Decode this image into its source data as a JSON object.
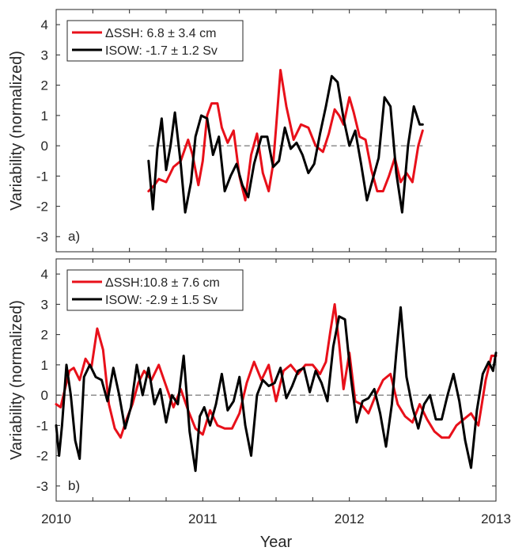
{
  "chart_data": [
    {
      "type": "line",
      "panel_label": "a)",
      "xlim": [
        2010,
        2013
      ],
      "ylim": [
        -3.5,
        4.5
      ],
      "yticks": [
        "-3",
        "-2",
        "-1",
        "0",
        "1",
        "2",
        "3",
        "4"
      ],
      "ylabel": "Variability (normalized)",
      "xlabel": "",
      "zero_line": "dashed",
      "grid": false,
      "legend_position": "top-left",
      "series": [
        {
          "name": "ΔSSH: 6.8 ± 3.4 cm",
          "color": "#e8101a",
          "x": [
            2010.63,
            2010.67,
            2010.7,
            2010.75,
            2010.8,
            2010.85,
            2010.9,
            2010.93,
            2010.97,
            2011.0,
            2011.03,
            2011.06,
            2011.1,
            2011.13,
            2011.17,
            2011.21,
            2011.25,
            2011.29,
            2011.33,
            2011.37,
            2011.41,
            2011.45,
            2011.48,
            2011.5,
            2011.53,
            2011.57,
            2011.62,
            2011.67,
            2011.72,
            2011.77,
            2011.82,
            2011.86,
            2011.9,
            2011.93,
            2011.96,
            2012.0,
            2012.03,
            2012.07,
            2012.11,
            2012.15,
            2012.19,
            2012.23,
            2012.27,
            2012.31,
            2012.35,
            2012.39,
            2012.43,
            2012.47,
            2012.5
          ],
          "y": [
            -1.5,
            -1.3,
            -1.1,
            -1.2,
            -0.7,
            -0.5,
            0.2,
            -0.3,
            -1.3,
            -0.5,
            1.0,
            1.4,
            1.4,
            0.6,
            0.1,
            0.5,
            -1.0,
            -1.8,
            -0.3,
            0.4,
            -0.9,
            -1.5,
            -0.6,
            0.6,
            2.5,
            1.3,
            0.2,
            0.7,
            0.6,
            0.0,
            -0.2,
            0.4,
            1.2,
            1.0,
            0.7,
            1.6,
            1.1,
            0.3,
            0.2,
            -0.8,
            -1.5,
            -1.5,
            -1.0,
            -0.4,
            -1.2,
            -0.9,
            -1.2,
            0.0,
            0.5
          ]
        },
        {
          "name": "ISOW: -1.7  ± 1.2 Sv",
          "color": "#000000",
          "x": [
            2010.63,
            2010.66,
            2010.69,
            2010.72,
            2010.75,
            2010.78,
            2010.81,
            2010.85,
            2010.88,
            2010.92,
            2010.95,
            2010.99,
            2011.03,
            2011.07,
            2011.11,
            2011.15,
            2011.19,
            2011.23,
            2011.27,
            2011.31,
            2011.35,
            2011.4,
            2011.44,
            2011.48,
            2011.52,
            2011.56,
            2011.6,
            2011.64,
            2011.68,
            2011.72,
            2011.76,
            2011.8,
            2011.84,
            2011.88,
            2011.92,
            2011.96,
            2012.0,
            2012.04,
            2012.08,
            2012.12,
            2012.16,
            2012.2,
            2012.24,
            2012.28,
            2012.32,
            2012.36,
            2012.4,
            2012.44,
            2012.48,
            2012.5
          ],
          "y": [
            -0.5,
            -2.1,
            -0.1,
            0.9,
            -0.8,
            0.0,
            1.1,
            -0.6,
            -2.2,
            -1.2,
            0.3,
            1.0,
            0.9,
            -0.3,
            0.3,
            -1.5,
            -1.0,
            -0.6,
            -1.3,
            -1.7,
            -0.6,
            0.3,
            0.3,
            -0.7,
            -0.5,
            0.6,
            -0.1,
            0.1,
            -0.3,
            -0.9,
            -0.6,
            0.4,
            1.3,
            2.3,
            2.1,
            0.9,
            0.0,
            0.5,
            -0.6,
            -1.8,
            -1.1,
            -0.4,
            1.6,
            1.3,
            -0.9,
            -2.2,
            0.0,
            1.3,
            0.7,
            0.7
          ]
        }
      ]
    },
    {
      "type": "line",
      "panel_label": "b)",
      "xlim": [
        2010,
        2013
      ],
      "ylim": [
        -3.5,
        4.5
      ],
      "xticks": [
        "2010",
        "2011",
        "2012",
        "2013"
      ],
      "yticks": [
        "-3",
        "-2",
        "-1",
        "0",
        "1",
        "2",
        "3",
        "4"
      ],
      "ylabel": "Variability (normalized)",
      "xlabel": "Year",
      "zero_line": "dashed",
      "grid": false,
      "legend_position": "top-left",
      "series": [
        {
          "name": "ΔSSH:10.8 ± 7.6 cm",
          "color": "#e8101a",
          "x": [
            2010.0,
            2010.03,
            2010.06,
            2010.09,
            2010.12,
            2010.16,
            2010.2,
            2010.24,
            2010.28,
            2010.32,
            2010.36,
            2010.4,
            2010.44,
            2010.48,
            2010.52,
            2010.56,
            2010.6,
            2010.65,
            2010.7,
            2010.75,
            2010.8,
            2010.85,
            2010.9,
            2010.95,
            2011.0,
            2011.05,
            2011.1,
            2011.15,
            2011.2,
            2011.25,
            2011.3,
            2011.35,
            2011.4,
            2011.45,
            2011.5,
            2011.55,
            2011.6,
            2011.65,
            2011.7,
            2011.75,
            2011.8,
            2011.84,
            2011.87,
            2011.9,
            2011.93,
            2011.96,
            2012.0,
            2012.04,
            2012.08,
            2012.13,
            2012.18,
            2012.23,
            2012.28,
            2012.33,
            2012.38,
            2012.43,
            2012.48,
            2012.53,
            2012.58,
            2012.63,
            2012.68,
            2012.73,
            2012.78,
            2012.83,
            2012.88,
            2012.93,
            2012.97,
            2013.0
          ],
          "y": [
            -0.3,
            -0.4,
            0.2,
            0.8,
            0.9,
            0.5,
            1.2,
            0.9,
            2.2,
            1.5,
            -0.3,
            -1.1,
            -1.4,
            -0.8,
            -0.3,
            0.4,
            0.8,
            0.5,
            1.0,
            0.3,
            -0.4,
            0.2,
            -0.5,
            -1.1,
            -1.3,
            -0.5,
            -1.0,
            -1.1,
            -1.1,
            -0.6,
            0.4,
            1.1,
            0.5,
            1.0,
            -0.2,
            0.8,
            1.0,
            0.7,
            1.0,
            1.0,
            0.7,
            1.1,
            2.1,
            3.0,
            1.7,
            0.2,
            1.4,
            -0.2,
            -0.3,
            -0.6,
            0.0,
            0.5,
            0.7,
            -0.3,
            -0.7,
            -0.9,
            -0.3,
            -0.8,
            -1.2,
            -1.4,
            -1.4,
            -1.0,
            -0.8,
            -0.6,
            -1.0,
            0.5,
            1.3,
            1.3
          ]
        },
        {
          "name": "ISOW: -2.9  ± 1.5 Sv",
          "color": "#000000",
          "x": [
            2010.0,
            2010.02,
            2010.04,
            2010.07,
            2010.1,
            2010.13,
            2010.16,
            2010.19,
            2010.23,
            2010.27,
            2010.31,
            2010.35,
            2010.39,
            2010.43,
            2010.47,
            2010.51,
            2010.55,
            2010.59,
            2010.63,
            2010.67,
            2010.71,
            2010.75,
            2010.79,
            2010.83,
            2010.87,
            2010.91,
            2010.95,
            2010.98,
            2011.01,
            2011.05,
            2011.09,
            2011.13,
            2011.17,
            2011.21,
            2011.25,
            2011.29,
            2011.33,
            2011.37,
            2011.41,
            2011.45,
            2011.49,
            2011.53,
            2011.57,
            2011.61,
            2011.65,
            2011.69,
            2011.73,
            2011.77,
            2011.81,
            2011.85,
            2011.89,
            2011.93,
            2011.97,
            2012.01,
            2012.05,
            2012.09,
            2012.13,
            2012.17,
            2012.21,
            2012.25,
            2012.29,
            2012.32,
            2012.35,
            2012.39,
            2012.43,
            2012.47,
            2012.51,
            2012.55,
            2012.59,
            2012.63,
            2012.67,
            2012.71,
            2012.75,
            2012.79,
            2012.83,
            2012.87,
            2012.91,
            2012.95,
            2012.98,
            2013.0
          ],
          "y": [
            -1.0,
            -2.0,
            -1.0,
            1.0,
            0.0,
            -1.5,
            -2.1,
            0.6,
            1.0,
            0.6,
            0.5,
            -0.2,
            0.9,
            0.0,
            -1.1,
            -0.4,
            1.0,
            0.0,
            0.9,
            -0.3,
            0.2,
            -0.9,
            0.0,
            -0.3,
            1.3,
            -1.2,
            -2.5,
            -0.7,
            -0.4,
            -1.0,
            -0.3,
            0.7,
            -0.5,
            -0.2,
            0.6,
            -1.0,
            -2.0,
            0.0,
            0.5,
            0.3,
            0.4,
            0.9,
            -0.1,
            0.3,
            0.8,
            0.9,
            0.1,
            0.8,
            0.4,
            -0.2,
            1.6,
            2.6,
            2.5,
            0.6,
            -0.9,
            -0.2,
            -0.1,
            0.2,
            -0.6,
            -1.7,
            -0.3,
            1.4,
            2.9,
            0.6,
            -0.4,
            -1.1,
            -0.3,
            0.0,
            -0.8,
            -0.8,
            0.0,
            0.7,
            -0.2,
            -1.5,
            -2.4,
            -0.5,
            0.7,
            1.1,
            0.8,
            1.4
          ]
        }
      ]
    }
  ]
}
